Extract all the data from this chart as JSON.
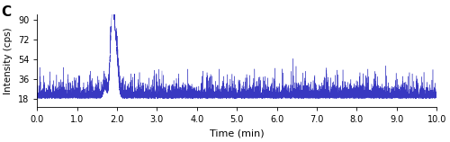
{
  "title_label": "C",
  "xlabel": "Time (min)",
  "ylabel": "Intensity (cps)",
  "xmin": 0.0,
  "xmax": 10.0,
  "ymin": 10,
  "ymax": 95,
  "yticks": [
    18,
    36,
    54,
    72,
    90
  ],
  "xticks": [
    0.0,
    1.0,
    2.0,
    3.0,
    4.0,
    5.0,
    6.0,
    7.0,
    8.0,
    9.0,
    10.0
  ],
  "line_color": "#2222bb",
  "noise_baseline": 18,
  "noise_amplitude": 3.5,
  "peak_time": 1.88,
  "peak_height": 90,
  "shoulder_time": 1.97,
  "shoulder_height": 62,
  "seed": 42,
  "n_points": 8000
}
